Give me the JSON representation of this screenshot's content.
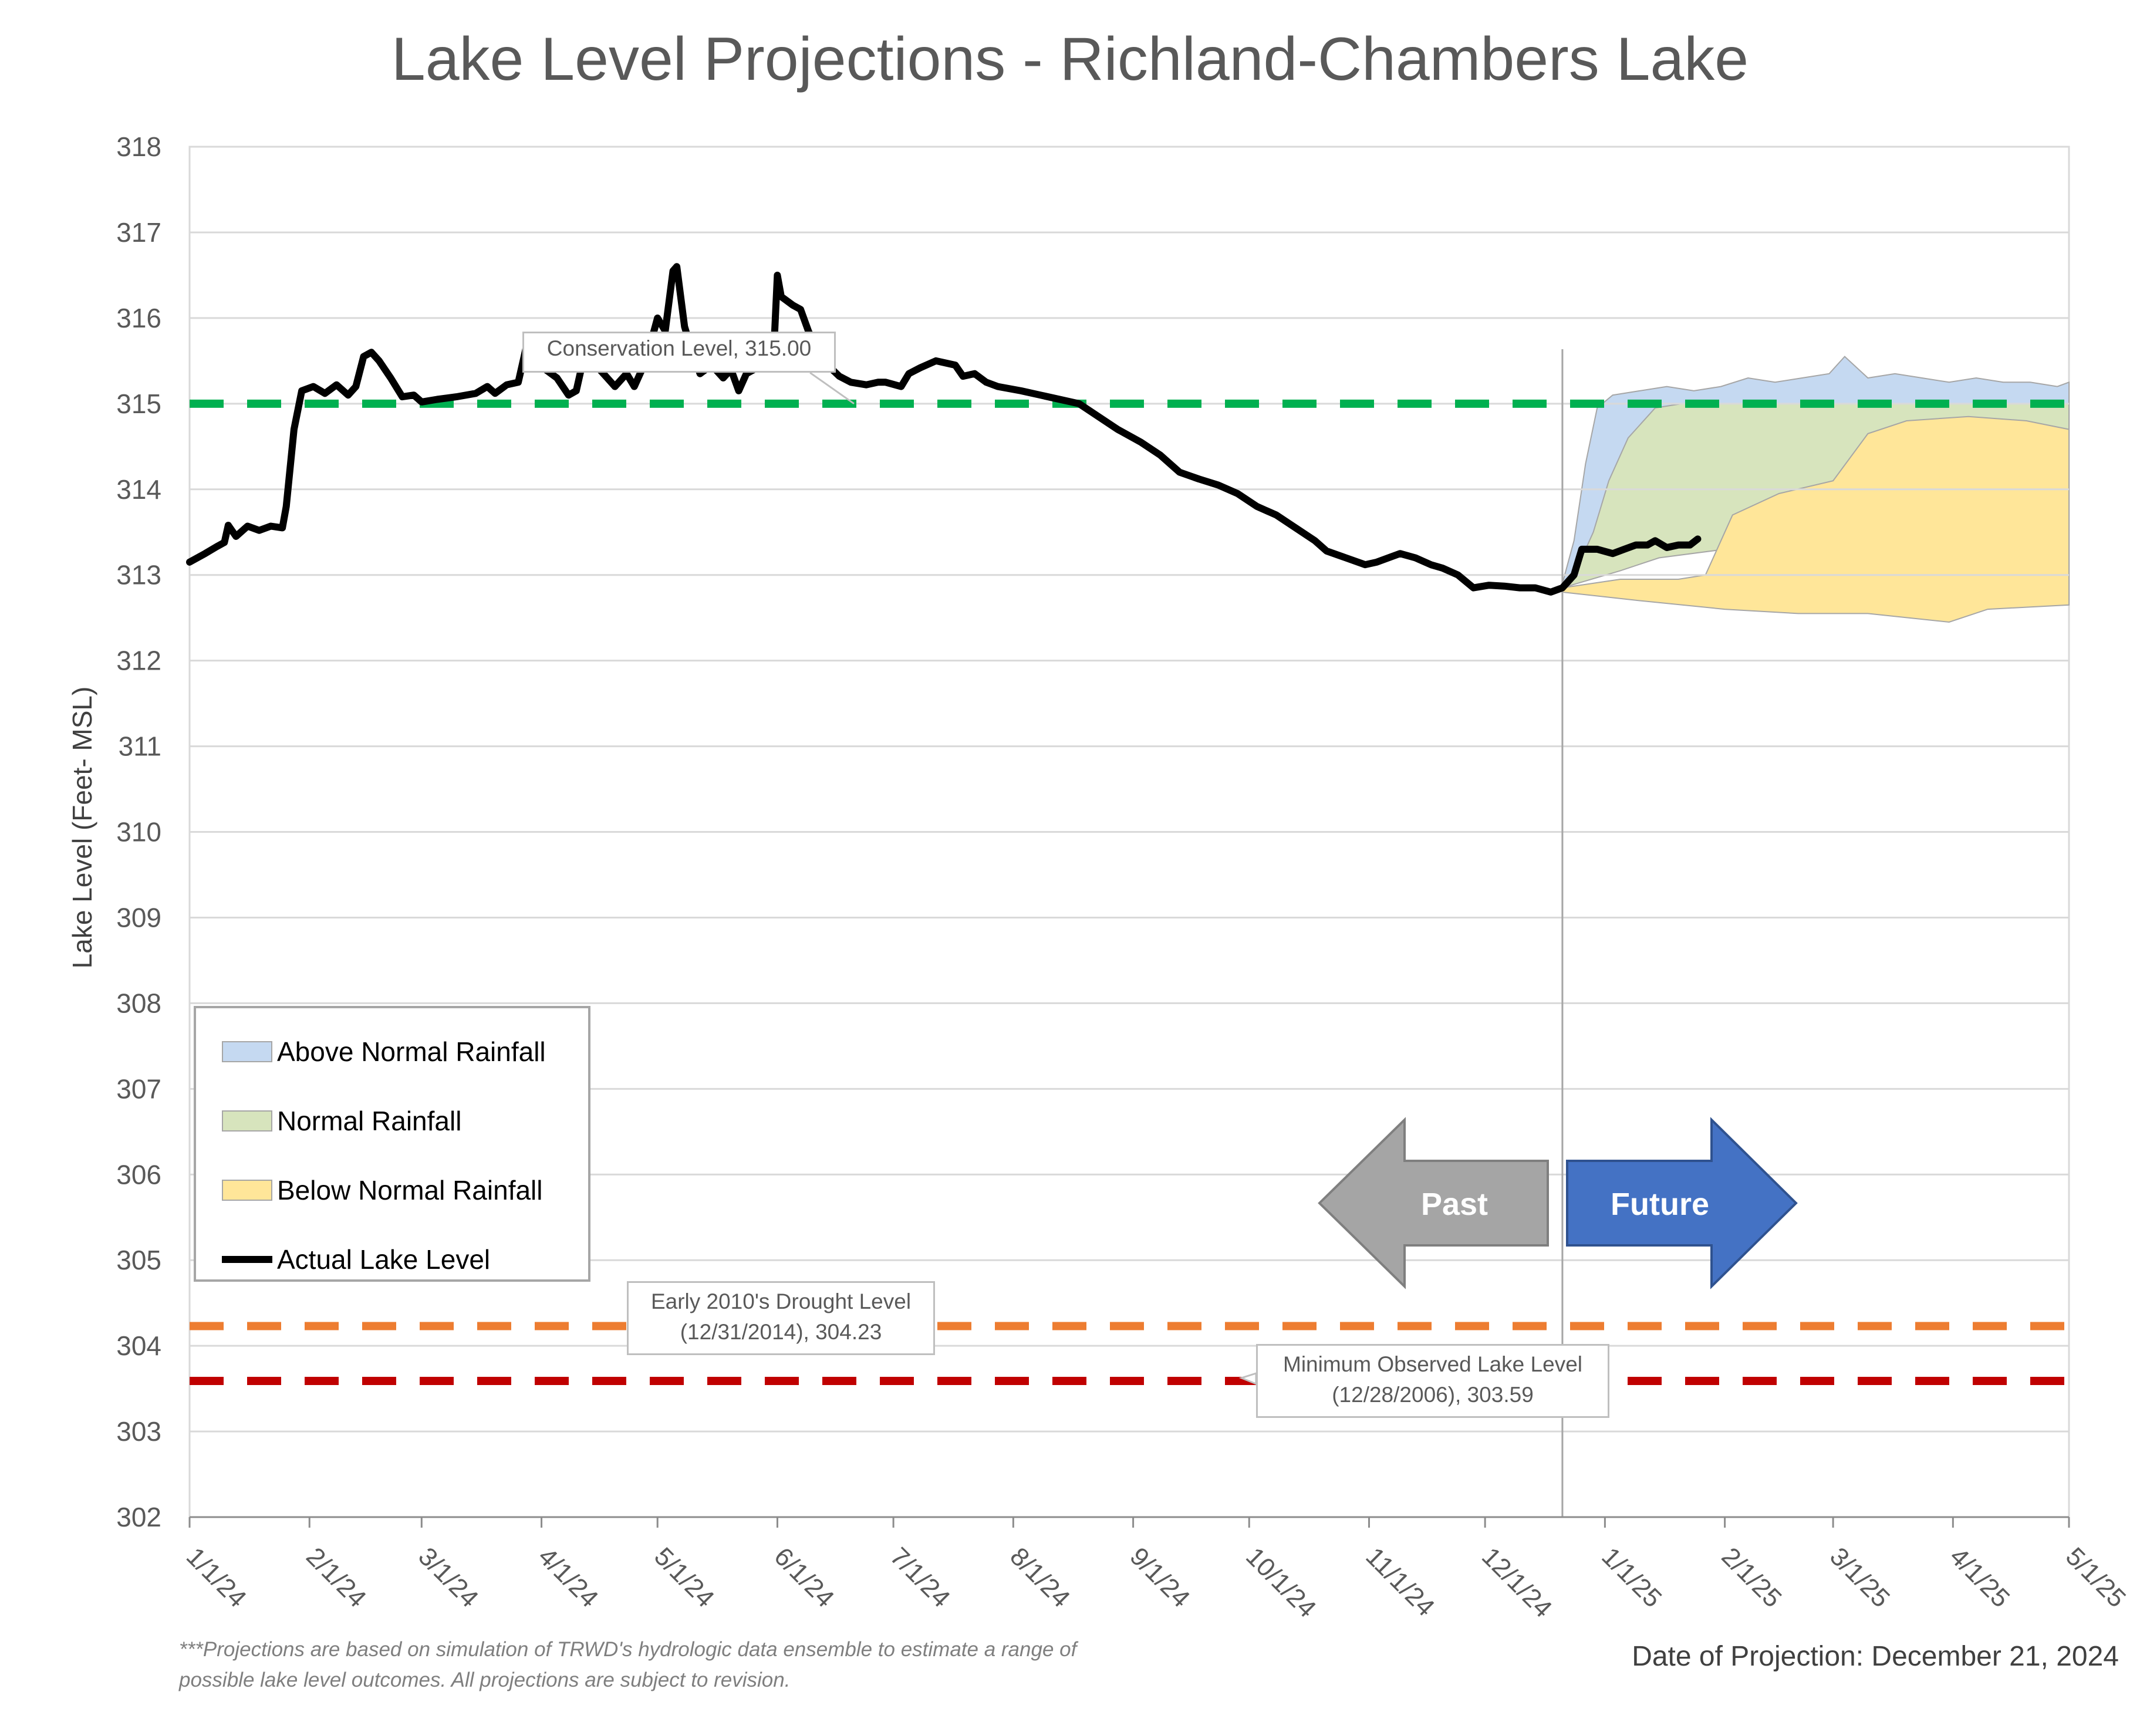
{
  "chart_data": {
    "type": "line",
    "title": "Lake Level Projections - Richland-Chambers Lake",
    "ylabel": "Lake Level (Feet- MSL)",
    "xlabel": "",
    "ylim": [
      302,
      318
    ],
    "yticks": [
      302,
      303,
      304,
      305,
      306,
      307,
      308,
      309,
      310,
      311,
      312,
      313,
      314,
      315,
      316,
      317,
      318
    ],
    "xlim": [
      "2024-01-01",
      "2025-05-01"
    ],
    "xtick_labels": [
      "1/1/24",
      "2/1/24",
      "3/1/24",
      "4/1/24",
      "5/1/24",
      "6/1/24",
      "7/1/24",
      "8/1/24",
      "9/1/24",
      "10/1/24",
      "11/1/24",
      "12/1/24",
      "1/1/25",
      "2/1/25",
      "3/1/25",
      "4/1/25",
      "5/1/25"
    ],
    "grid": true,
    "legend_position": "bottom-left",
    "projection_date": "2024-12-21",
    "series": [
      {
        "name": "Actual Lake Level",
        "color": "#000000",
        "points": [
          [
            "2024-01-01",
            313.15
          ],
          [
            "2024-01-05",
            313.25
          ],
          [
            "2024-01-08",
            313.33
          ],
          [
            "2024-01-10",
            313.38
          ],
          [
            "2024-01-11",
            313.58
          ],
          [
            "2024-01-13",
            313.45
          ],
          [
            "2024-01-16",
            313.57
          ],
          [
            "2024-01-19",
            313.52
          ],
          [
            "2024-01-22",
            313.57
          ],
          [
            "2024-01-25",
            313.55
          ],
          [
            "2024-01-26",
            313.8
          ],
          [
            "2024-01-28",
            314.7
          ],
          [
            "2024-01-30",
            315.15
          ],
          [
            "2024-02-02",
            315.2
          ],
          [
            "2024-02-05",
            315.12
          ],
          [
            "2024-02-08",
            315.22
          ],
          [
            "2024-02-11",
            315.1
          ],
          [
            "2024-02-13",
            315.2
          ],
          [
            "2024-02-15",
            315.55
          ],
          [
            "2024-02-17",
            315.6
          ],
          [
            "2024-02-19",
            315.5
          ],
          [
            "2024-02-22",
            315.3
          ],
          [
            "2024-02-25",
            315.08
          ],
          [
            "2024-02-28",
            315.1
          ],
          [
            "2024-03-01",
            315.02
          ],
          [
            "2024-03-05",
            315.05
          ],
          [
            "2024-03-10",
            315.08
          ],
          [
            "2024-03-15",
            315.12
          ],
          [
            "2024-03-18",
            315.2
          ],
          [
            "2024-03-20",
            315.12
          ],
          [
            "2024-03-23",
            315.22
          ],
          [
            "2024-03-26",
            315.25
          ],
          [
            "2024-03-28",
            315.65
          ],
          [
            "2024-03-30",
            315.6
          ],
          [
            "2024-04-02",
            315.4
          ],
          [
            "2024-04-05",
            315.3
          ],
          [
            "2024-04-08",
            315.1
          ],
          [
            "2024-04-10",
            315.15
          ],
          [
            "2024-04-12",
            315.55
          ],
          [
            "2024-04-14",
            315.6
          ],
          [
            "2024-04-16",
            315.4
          ],
          [
            "2024-04-18",
            315.3
          ],
          [
            "2024-04-20",
            315.2
          ],
          [
            "2024-04-23",
            315.35
          ],
          [
            "2024-04-25",
            315.2
          ],
          [
            "2024-04-28",
            315.5
          ],
          [
            "2024-05-01",
            316.0
          ],
          [
            "2024-05-03",
            315.85
          ],
          [
            "2024-05-05",
            316.55
          ],
          [
            "2024-05-06",
            316.6
          ],
          [
            "2024-05-08",
            315.9
          ],
          [
            "2024-05-10",
            315.6
          ],
          [
            "2024-05-12",
            315.35
          ],
          [
            "2024-05-15",
            315.45
          ],
          [
            "2024-05-18",
            315.3
          ],
          [
            "2024-05-20",
            315.4
          ],
          [
            "2024-05-22",
            315.15
          ],
          [
            "2024-05-24",
            315.35
          ],
          [
            "2024-05-26",
            315.4
          ],
          [
            "2024-05-28",
            315.5
          ],
          [
            "2024-05-31",
            315.55
          ],
          [
            "2024-06-01",
            316.5
          ],
          [
            "2024-06-02",
            316.25
          ],
          [
            "2024-06-05",
            316.15
          ],
          [
            "2024-06-07",
            316.1
          ],
          [
            "2024-06-09",
            315.85
          ],
          [
            "2024-06-11",
            315.65
          ],
          [
            "2024-06-14",
            315.45
          ],
          [
            "2024-06-17",
            315.32
          ],
          [
            "2024-06-20",
            315.25
          ],
          [
            "2024-06-24",
            315.22
          ],
          [
            "2024-06-27",
            315.25
          ],
          [
            "2024-06-29",
            315.25
          ],
          [
            "2024-07-03",
            315.2
          ],
          [
            "2024-07-05",
            315.35
          ],
          [
            "2024-07-08",
            315.42
          ],
          [
            "2024-07-12",
            315.5
          ],
          [
            "2024-07-17",
            315.45
          ],
          [
            "2024-07-19",
            315.32
          ],
          [
            "2024-07-22",
            315.35
          ],
          [
            "2024-07-25",
            315.25
          ],
          [
            "2024-07-28",
            315.2
          ],
          [
            "2024-08-03",
            315.15
          ],
          [
            "2024-08-08",
            315.1
          ],
          [
            "2024-08-13",
            315.05
          ],
          [
            "2024-08-18",
            315.0
          ],
          [
            "2024-08-23",
            314.85
          ],
          [
            "2024-08-28",
            314.7
          ],
          [
            "2024-09-03",
            314.55
          ],
          [
            "2024-09-08",
            314.4
          ],
          [
            "2024-09-13",
            314.2
          ],
          [
            "2024-09-18",
            314.12
          ],
          [
            "2024-09-23",
            314.05
          ],
          [
            "2024-09-28",
            313.95
          ],
          [
            "2024-10-03",
            313.8
          ],
          [
            "2024-10-08",
            313.7
          ],
          [
            "2024-10-13",
            313.55
          ],
          [
            "2024-10-18",
            313.4
          ],
          [
            "2024-10-21",
            313.28
          ],
          [
            "2024-10-26",
            313.2
          ],
          [
            "2024-10-31",
            313.12
          ],
          [
            "2024-11-03",
            313.15
          ],
          [
            "2024-11-06",
            313.2
          ],
          [
            "2024-11-09",
            313.25
          ],
          [
            "2024-11-13",
            313.2
          ],
          [
            "2024-11-17",
            313.12
          ],
          [
            "2024-11-20",
            313.08
          ],
          [
            "2024-11-24",
            313.0
          ],
          [
            "2024-11-28",
            312.85
          ],
          [
            "2024-12-02",
            312.88
          ],
          [
            "2024-12-06",
            312.87
          ],
          [
            "2024-12-10",
            312.85
          ],
          [
            "2024-12-14",
            312.85
          ],
          [
            "2024-12-18",
            312.8
          ],
          [
            "2024-12-21",
            312.85
          ],
          [
            "2024-12-24",
            313.0
          ],
          [
            "2024-12-26",
            313.3
          ],
          [
            "2024-12-30",
            313.3
          ],
          [
            "2025-01-03",
            313.25
          ],
          [
            "2025-01-06",
            313.3
          ],
          [
            "2025-01-09",
            313.35
          ],
          [
            "2025-01-12",
            313.35
          ],
          [
            "2025-01-14",
            313.4
          ],
          [
            "2025-01-17",
            313.32
          ],
          [
            "2025-01-20",
            313.35
          ],
          [
            "2025-01-23",
            313.35
          ],
          [
            "2025-01-25",
            313.42
          ]
        ]
      },
      {
        "name": "Above Normal Rainfall",
        "color": "#c5d9f1",
        "upper": [
          [
            "2024-12-21",
            312.9
          ],
          [
            "2024-12-24",
            313.4
          ],
          [
            "2024-12-27",
            314.3
          ],
          [
            "2024-12-30",
            314.95
          ],
          [
            "2025-01-03",
            315.1
          ],
          [
            "2025-01-10",
            315.15
          ],
          [
            "2025-01-17",
            315.2
          ],
          [
            "2025-01-24",
            315.15
          ],
          [
            "2025-01-31",
            315.2
          ],
          [
            "2025-02-07",
            315.3
          ],
          [
            "2025-02-14",
            315.25
          ],
          [
            "2025-02-21",
            315.3
          ],
          [
            "2025-02-28",
            315.35
          ],
          [
            "2025-03-04",
            315.55
          ],
          [
            "2025-03-10",
            315.3
          ],
          [
            "2025-03-17",
            315.35
          ],
          [
            "2025-03-24",
            315.3
          ],
          [
            "2025-03-31",
            315.25
          ],
          [
            "2025-04-07",
            315.3
          ],
          [
            "2025-04-14",
            315.25
          ],
          [
            "2025-04-21",
            315.25
          ],
          [
            "2025-04-28",
            315.2
          ],
          [
            "2025-05-01",
            315.25
          ]
        ],
        "lower": [
          [
            "2024-12-21",
            312.85
          ],
          [
            "2025-01-05",
            313.1
          ],
          [
            "2025-01-15",
            313.3
          ],
          [
            "2025-02-01",
            313.5
          ],
          [
            "2025-03-01",
            314.0
          ],
          [
            "2025-04-01",
            314.6
          ],
          [
            "2025-05-01",
            314.7
          ]
        ]
      },
      {
        "name": "Normal Rainfall",
        "color": "#d7e4bd",
        "upper": [
          [
            "2024-12-21",
            312.88
          ],
          [
            "2024-12-25",
            313.1
          ],
          [
            "2024-12-29",
            313.5
          ],
          [
            "2025-01-02",
            314.1
          ],
          [
            "2025-01-07",
            314.6
          ],
          [
            "2025-01-14",
            314.95
          ],
          [
            "2025-01-21",
            315.0
          ],
          [
            "2025-05-01",
            315.0
          ]
        ],
        "lower": [
          [
            "2024-12-21",
            312.85
          ],
          [
            "2025-01-05",
            313.05
          ],
          [
            "2025-01-15",
            313.2
          ],
          [
            "2025-02-01",
            313.3
          ],
          [
            "2025-02-15",
            313.6
          ],
          [
            "2025-03-01",
            314.1
          ],
          [
            "2025-03-15",
            314.6
          ],
          [
            "2025-04-01",
            314.75
          ],
          [
            "2025-05-01",
            314.7
          ]
        ]
      },
      {
        "name": "Below Normal Rainfall",
        "color": "#ffe699",
        "upper": [
          [
            "2024-12-21",
            312.85
          ],
          [
            "2025-01-05",
            312.95
          ],
          [
            "2025-01-20",
            312.95
          ],
          [
            "2025-01-27",
            313.0
          ],
          [
            "2025-02-03",
            313.7
          ],
          [
            "2025-02-15",
            313.95
          ],
          [
            "2025-03-01",
            314.1
          ],
          [
            "2025-03-10",
            314.65
          ],
          [
            "2025-03-20",
            314.8
          ],
          [
            "2025-04-05",
            314.85
          ],
          [
            "2025-04-20",
            314.8
          ],
          [
            "2025-05-01",
            314.7
          ]
        ],
        "lower": [
          [
            "2024-12-21",
            312.8
          ],
          [
            "2025-01-10",
            312.7
          ],
          [
            "2025-02-01",
            312.6
          ],
          [
            "2025-02-20",
            312.55
          ],
          [
            "2025-03-10",
            312.55
          ],
          [
            "2025-03-31",
            312.45
          ],
          [
            "2025-04-10",
            312.6
          ],
          [
            "2025-05-01",
            312.65
          ]
        ]
      }
    ],
    "reference_lines": [
      {
        "name": "Conservation Level",
        "value": 315.0,
        "color": "#00b050",
        "label": "Conservation Level, 315.00"
      },
      {
        "name": "Early 2010's Drought Level",
        "value": 304.23,
        "color": "#ed7d31",
        "label_line1": "Early 2010's Drought Level",
        "label_line2": "(12/31/2014), 304.23"
      },
      {
        "name": "Minimum Observed Lake Level",
        "value": 303.59,
        "color": "#c00000",
        "label_line1": "Minimum Observed Lake Level",
        "label_line2": "(12/28/2006), 303.59"
      }
    ],
    "arrows": {
      "past_label": "Past",
      "future_label": "Future",
      "past_color": "#a5a5a5",
      "future_color": "#4472c4"
    }
  },
  "legend": {
    "items": [
      {
        "label": "Above Normal Rainfall",
        "color": "#c5d9f1"
      },
      {
        "label": "Normal Rainfall",
        "color": "#d7e4bd"
      },
      {
        "label": "Below Normal Rainfall",
        "color": "#ffe699"
      },
      {
        "label": "Actual Lake Level",
        "color": "#000000"
      }
    ]
  },
  "footer": {
    "note": "***Projections are based on simulation of TRWD's hydrologic data ensemble to estimate a range of possible lake level outcomes.  All projections are subject to revision.",
    "projection_date": "Date of Projection: December 21, 2024"
  }
}
